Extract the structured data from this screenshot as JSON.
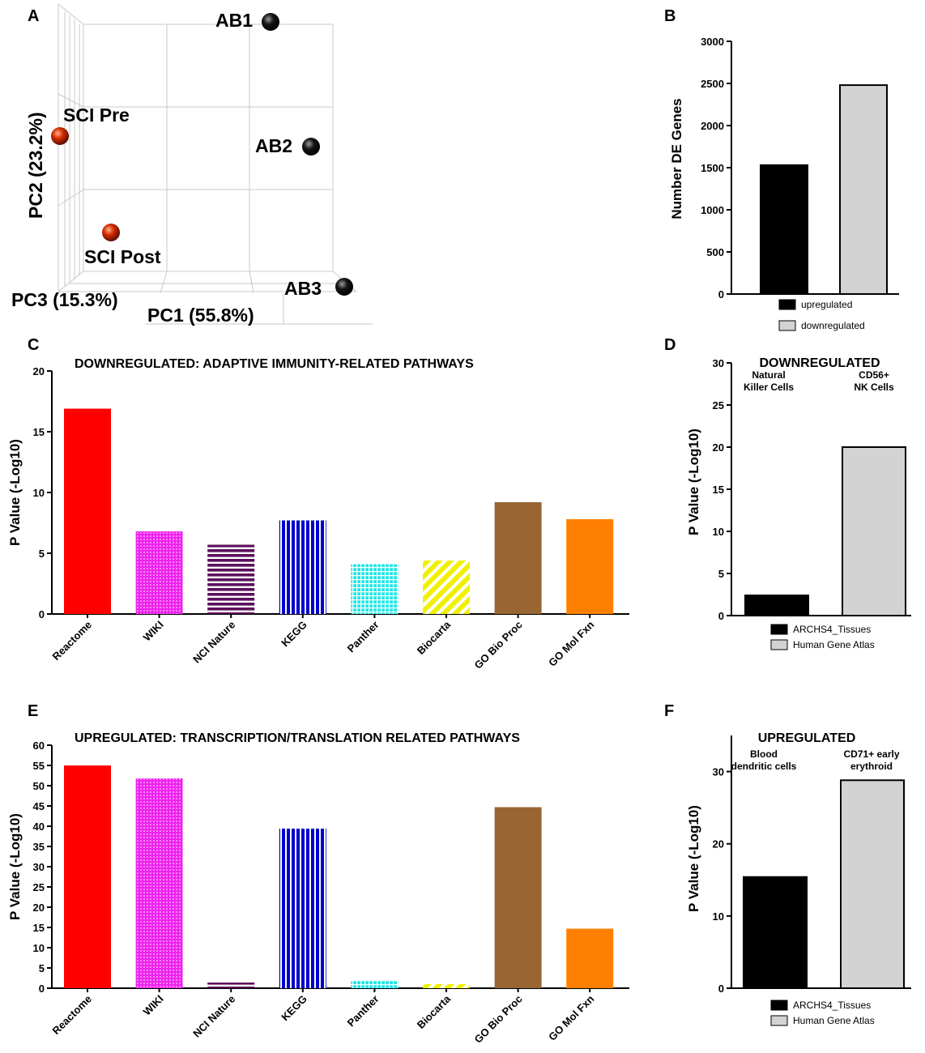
{
  "chart_data": [
    {
      "panel": "A",
      "type": "scatter",
      "xlabel": "PC1 (55.8%)",
      "ylabel": "PC2 (23.2%)",
      "zlabel": "PC3 (15.3%)",
      "points": [
        {
          "label": "AB1",
          "group": "AB"
        },
        {
          "label": "AB2",
          "group": "AB"
        },
        {
          "label": "AB3",
          "group": "AB"
        },
        {
          "label": "SCI Pre",
          "group": "SCI"
        },
        {
          "label": "SCI Post",
          "group": "SCI"
        }
      ],
      "colors": {
        "AB": "#111111",
        "SCI": "#d42a00"
      }
    },
    {
      "panel": "B",
      "type": "bar",
      "title": "",
      "ylabel": "Number DE Genes",
      "ylim": [
        0,
        3000
      ],
      "yticks": [
        0,
        500,
        1000,
        1500,
        2000,
        2500,
        3000
      ],
      "categories": [
        "upregulated",
        "downregulated"
      ],
      "values": [
        1530,
        2480
      ],
      "colors": [
        "#000000",
        "#d3d3d3"
      ],
      "legend": [
        "upregulated",
        "downregulated"
      ]
    },
    {
      "panel": "C",
      "type": "bar",
      "title": "DOWNREGULATED: ADAPTIVE IMMUNITY-RELATED PATHWAYS",
      "ylabel": "P Value (-Log10)",
      "ylim": [
        0,
        20
      ],
      "yticks": [
        0,
        5,
        10,
        15,
        20
      ],
      "categories": [
        "Reactome",
        "WIKI",
        "NCI Nature",
        "KEGG",
        "Panther",
        "Biocarta",
        "GO Bio Proc",
        "GO Mol Fxn"
      ],
      "values": [
        16.9,
        6.8,
        5.7,
        7.7,
        4.1,
        4.4,
        9.2,
        7.8
      ],
      "colors": [
        "#ff0000",
        "#ee22ee",
        "#5b0f5b",
        "#0000cc",
        "#22e6e6",
        "#f0f000",
        "#996633",
        "#ff8000"
      ],
      "patterns": [
        "solid",
        "dots",
        "hstripes",
        "vstripes",
        "grid",
        "diag",
        "solid",
        "solid"
      ]
    },
    {
      "panel": "D",
      "type": "bar",
      "title": "DOWNREGULATED",
      "ylabel": "P Value (-Log10)",
      "ylim": [
        0,
        30
      ],
      "yticks": [
        0,
        5,
        10,
        15,
        20,
        25,
        30
      ],
      "categories": [
        "ARCHS4_Tissues",
        "Human Gene Atlas"
      ],
      "values": [
        2.4,
        20.0
      ],
      "colors": [
        "#000000",
        "#d3d3d3"
      ],
      "annotations": [
        [
          "Natural",
          "Killer Cells"
        ],
        [
          "CD56+",
          "NK Cells"
        ]
      ],
      "legend": [
        "ARCHS4_Tissues",
        "Human Gene Atlas"
      ]
    },
    {
      "panel": "E",
      "type": "bar",
      "title": "UPREGULATED:  TRANSCRIPTION/TRANSLATION RELATED PATHWAYS",
      "ylabel": "P Value (-Log10)",
      "ylim": [
        0,
        60
      ],
      "yticks": [
        0,
        5,
        10,
        15,
        20,
        25,
        30,
        35,
        40,
        45,
        50,
        55,
        60
      ],
      "categories": [
        "Reactome",
        "WIKI",
        "NCI Nature",
        "KEGG",
        "Panther",
        "Biocarta",
        "GO Bio Proc",
        "GO Mol Fxn"
      ],
      "values": [
        55,
        51.8,
        1.4,
        39.4,
        1.8,
        1.0,
        44.7,
        14.7
      ],
      "colors": [
        "#ff0000",
        "#ee22ee",
        "#5b0f5b",
        "#0000cc",
        "#22e6e6",
        "#f0f000",
        "#996633",
        "#ff8000"
      ],
      "patterns": [
        "solid",
        "dots",
        "hstripes",
        "vstripes",
        "grid",
        "diag",
        "solid",
        "solid"
      ]
    },
    {
      "panel": "F",
      "type": "bar",
      "title": "UPREGULATED",
      "ylabel": "P Value (-Log10)",
      "ylim": [
        0,
        35
      ],
      "yticks": [
        0,
        10,
        20,
        30
      ],
      "categories": [
        "ARCHS4_Tissues",
        "Human Gene Atlas"
      ],
      "values": [
        15.4,
        28.8
      ],
      "colors": [
        "#000000",
        "#d3d3d3"
      ],
      "annotations": [
        [
          "Blood",
          "dendritic cells"
        ],
        [
          "CD71+ early",
          "erythroid"
        ]
      ],
      "legend": [
        "ARCHS4_Tissues",
        "Human Gene Atlas"
      ]
    }
  ]
}
